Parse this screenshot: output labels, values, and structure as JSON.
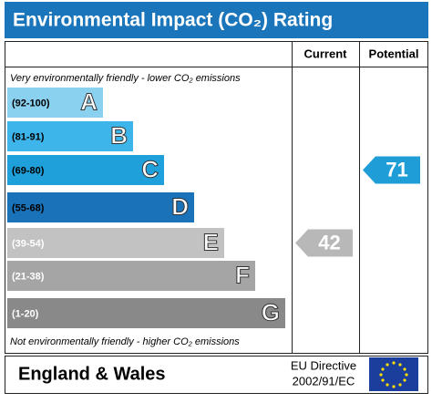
{
  "chart_data": {
    "type": "rating-bands",
    "title": "Environmental Impact (CO₂) Rating",
    "column_headers": [
      "Current",
      "Potential"
    ],
    "top_note": "Very environmentally friendly - lower CO₂ emissions",
    "bottom_note": "Not environmentally friendly - higher CO₂ emissions",
    "bands": [
      {
        "range": "(92-100)",
        "letter": "A",
        "color": "#8ad0ef"
      },
      {
        "range": "(81-91)",
        "letter": "B",
        "color": "#3db5ea"
      },
      {
        "range": "(69-80)",
        "letter": "C",
        "color": "#1fa0da"
      },
      {
        "range": "(55-68)",
        "letter": "D",
        "color": "#1a72b8"
      },
      {
        "range": "(39-54)",
        "letter": "E",
        "color": "#c2c2c2"
      },
      {
        "range": "(21-38)",
        "letter": "F",
        "color": "#a5a5a5"
      },
      {
        "range": "(1-20)",
        "letter": "G",
        "color": "#898989"
      }
    ],
    "current": {
      "value": 42,
      "color": "#b8b8b8"
    },
    "potential": {
      "value": 71,
      "color": "#1e9dd6"
    },
    "footer": {
      "region": "England & Wales",
      "directive_line1": "EU Directive",
      "directive_line2": "2002/91/EC"
    }
  }
}
